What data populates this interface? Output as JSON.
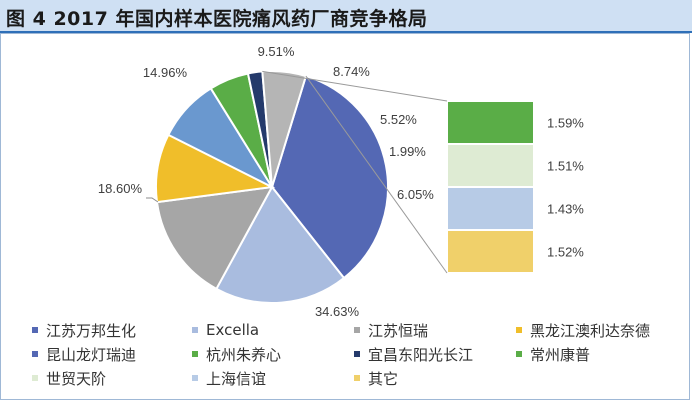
{
  "title": "图 4   2017 年国内样本医院痛风药厂商竞争格局",
  "chart_data": {
    "type": "pie",
    "slices": [
      {
        "name": "江苏万邦生化",
        "value": 34.63,
        "label": "34.63%",
        "color": "#5468b4"
      },
      {
        "name": "Excella",
        "value": 18.6,
        "label": "18.60%",
        "color": "#a9bcdf"
      },
      {
        "name": "江苏恒瑞",
        "value": 14.96,
        "label": "14.96%",
        "color": "#a6a6a6"
      },
      {
        "name": "黑龙江澳利达奈德",
        "value": 9.51,
        "label": "9.51%",
        "color": "#f0be2a"
      },
      {
        "name": "昆山龙灯瑞迪",
        "value": 8.74,
        "label": "8.74%",
        "color": "#6a98cf"
      },
      {
        "name": "杭州朱养心",
        "value": 5.52,
        "label": "5.52%",
        "color": "#5aad47"
      },
      {
        "name": "宜昌东阳光长江",
        "value": 1.99,
        "label": "1.99%",
        "color": "#243a6b"
      },
      {
        "name": "其它",
        "value": 6.05,
        "label": "6.05%",
        "color": "#b5b5b5"
      }
    ],
    "breakdown": {
      "of": "其它",
      "items": [
        {
          "name": "常州康普",
          "value": 1.59,
          "label": "1.59%",
          "color": "#5aad47"
        },
        {
          "name": "世贸天阶",
          "value": 1.51,
          "label": "1.51%",
          "color": "#deebd3"
        },
        {
          "name": "上海信谊",
          "value": 1.43,
          "label": "1.43%",
          "color": "#b7cbe6"
        },
        {
          "name": "其它",
          "value": 1.52,
          "label": "1.52%",
          "color": "#f0d06a"
        }
      ]
    },
    "legend": [
      {
        "name": "江苏万邦生化",
        "color": "#5468b4"
      },
      {
        "name": "Excella",
        "color": "#a9bcdf"
      },
      {
        "name": "江苏恒瑞",
        "color": "#a6a6a6"
      },
      {
        "name": "黑龙江澳利达奈德",
        "color": "#f0be2a"
      },
      {
        "name": "昆山龙灯瑞迪",
        "color": "#5468b4"
      },
      {
        "name": "杭州朱养心",
        "color": "#5aad47"
      },
      {
        "name": "宜昌东阳光长江",
        "color": "#243a6b"
      },
      {
        "name": "常州康普",
        "color": "#5aad47"
      },
      {
        "name": "世贸天阶",
        "color": "#deebd3"
      },
      {
        "name": "上海信谊",
        "color": "#b7cbe6"
      },
      {
        "name": "其它",
        "color": "#f0d06a"
      }
    ],
    "legend_placement": "bottom"
  }
}
